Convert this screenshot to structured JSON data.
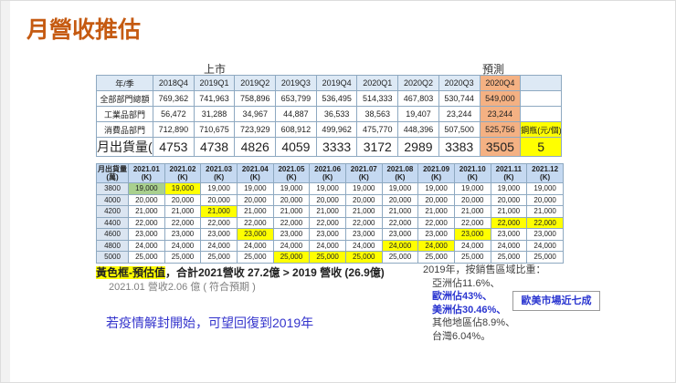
{
  "title": "月營收推估",
  "table1": {
    "group_labels": [
      "上市",
      "預測"
    ],
    "header": [
      "年/季",
      "2018Q4",
      "2019Q1",
      "2019Q2",
      "2019Q3",
      "2019Q4",
      "2020Q1",
      "2020Q2",
      "2020Q3",
      "2020Q4",
      null
    ],
    "rows": [
      [
        "全部部門總額",
        "769,362",
        "741,963",
        "758,896",
        "653,799",
        "536,495",
        "514,333",
        "467,803",
        "530,744",
        "549,000",
        null
      ],
      [
        "工業品部門",
        "56,472",
        "31,288",
        "34,967",
        "44,887",
        "36,533",
        "38,563",
        "19,407",
        "23,244",
        "23,244",
        null
      ],
      [
        "消費品部門",
        "712,890",
        "710,675",
        "723,929",
        "608,912",
        "499,962",
        "475,770",
        "448,396",
        "507,500",
        "525,756",
        "鋼瓶(元/個)"
      ],
      [
        "月出貨量(萬)",
        "4753",
        "4738",
        "4826",
        "4059",
        "3333",
        "3172",
        "2989",
        "3383",
        "3505",
        "5"
      ]
    ],
    "header_fills": [
      null,
      null,
      null,
      null,
      null,
      null,
      null,
      null,
      null,
      "#f4b183",
      null
    ],
    "fills": [
      [
        null,
        null,
        null,
        null,
        null,
        null,
        null,
        null,
        null,
        "#f4b183",
        null
      ],
      [
        null,
        null,
        null,
        null,
        null,
        null,
        null,
        null,
        null,
        "#f4b183",
        null
      ],
      [
        null,
        null,
        null,
        null,
        null,
        null,
        null,
        null,
        null,
        "#f4b183",
        "#ffff00"
      ],
      [
        null,
        null,
        null,
        null,
        null,
        null,
        null,
        null,
        null,
        "#f4b183",
        "#ffff00"
      ]
    ]
  },
  "table2": {
    "header": [
      [
        "月出貨量",
        "(萬)"
      ],
      [
        "2021.01",
        "(K)"
      ],
      [
        "2021.02",
        "(K)"
      ],
      [
        "2021.03",
        "(K)"
      ],
      [
        "2021.04",
        "(K)"
      ],
      [
        "2021.05",
        "(K)"
      ],
      [
        "2021.06",
        "(K)"
      ],
      [
        "2021.07",
        "(K)"
      ],
      [
        "2021.08",
        "(K)"
      ],
      [
        "2021.09",
        "(K)"
      ],
      [
        "2021.10",
        "(K)"
      ],
      [
        "2021.11",
        "(K)"
      ],
      [
        "2021.12",
        "(K)"
      ]
    ],
    "rows": [
      [
        "3800",
        "19,000",
        "19,000",
        "19,000",
        "19,000",
        "19,000",
        "19,000",
        "19,000",
        "19,000",
        "19,000",
        "19,000",
        "19,000",
        "19,000"
      ],
      [
        "4000",
        "20,000",
        "20,000",
        "20,000",
        "20,000",
        "20,000",
        "20,000",
        "20,000",
        "20,000",
        "20,000",
        "20,000",
        "20,000",
        "20,000"
      ],
      [
        "4200",
        "21,000",
        "21,000",
        "21,000",
        "21,000",
        "21,000",
        "21,000",
        "21,000",
        "21,000",
        "21,000",
        "21,000",
        "21,000",
        "21,000"
      ],
      [
        "4400",
        "22,000",
        "22,000",
        "22,000",
        "22,000",
        "22,000",
        "22,000",
        "22,000",
        "22,000",
        "22,000",
        "22,000",
        "22,000",
        "22,000"
      ],
      [
        "4600",
        "23,000",
        "23,000",
        "23,000",
        "23,000",
        "23,000",
        "23,000",
        "23,000",
        "23,000",
        "23,000",
        "23,000",
        "23,000",
        "23,000"
      ],
      [
        "4800",
        "24,000",
        "24,000",
        "24,000",
        "24,000",
        "24,000",
        "24,000",
        "24,000",
        "24,000",
        "24,000",
        "24,000",
        "24,000",
        "24,000"
      ],
      [
        "5000",
        "25,000",
        "25,000",
        "25,000",
        "25,000",
        "25,000",
        "25,000",
        "25,000",
        "25,000",
        "25,000",
        "25,000",
        "25,000",
        "25,000"
      ]
    ],
    "fills": [
      [
        null,
        "#a9d08e",
        "#ffff00",
        null,
        null,
        null,
        null,
        null,
        null,
        null,
        null,
        null,
        null
      ],
      [
        null,
        null,
        null,
        null,
        null,
        null,
        null,
        null,
        null,
        null,
        null,
        null,
        null
      ],
      [
        null,
        null,
        null,
        "#ffff00",
        null,
        null,
        null,
        null,
        null,
        null,
        null,
        null,
        null
      ],
      [
        null,
        null,
        null,
        null,
        null,
        null,
        null,
        null,
        null,
        null,
        null,
        "#ffff00",
        "#ffff00"
      ],
      [
        null,
        null,
        null,
        null,
        "#ffff00",
        null,
        null,
        null,
        null,
        null,
        "#ffff00",
        null,
        null
      ],
      [
        null,
        null,
        null,
        null,
        null,
        null,
        null,
        null,
        "#ffff00",
        "#ffff00",
        null,
        null,
        null
      ],
      [
        null,
        null,
        null,
        null,
        null,
        "#ffff00",
        "#ffff00",
        "#ffff00",
        null,
        null,
        null,
        null,
        null
      ]
    ]
  },
  "notes": {
    "estimate_key": "黃色框-預估值",
    "estimate_text": "，合計2021營收 27.2億 > 2019 營收 (26.9億)",
    "january": "2021.01 營收2.06 億 ( 符合預期 )",
    "outlook": "若疫情解封開始，可望回復到2019年",
    "regions": [
      {
        "text": "2019年，按銷售區域比重：",
        "color": "#404040"
      },
      {
        "text": "亞洲佔11.6%、",
        "color": "#404040"
      },
      {
        "text": "歐洲佔43%、",
        "color": "#2a35d0"
      },
      {
        "text": "美洲佔30.46%、",
        "color": "#2a35d0"
      },
      {
        "text": "其他地區佔8.9%、",
        "color": "#404040"
      },
      {
        "text": "台灣6.04%。",
        "color": "#404040"
      }
    ],
    "callout": "歐美市場近七成"
  }
}
